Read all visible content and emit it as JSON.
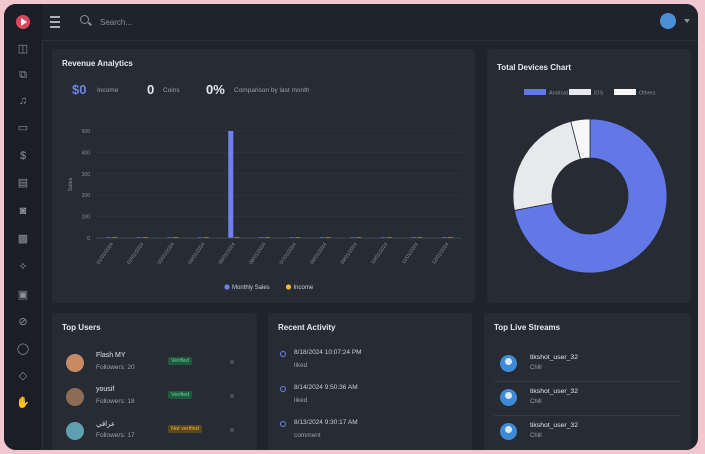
{
  "topbar": {
    "search_placeholder": "Search..."
  },
  "sidebar": {
    "icons": [
      "collections-icon",
      "copy-icon",
      "music-note-icon",
      "monitor-icon",
      "dollar-icon",
      "store-icon",
      "basket-icon",
      "bar-chart-icon",
      "sparkle-icon",
      "folder-icon",
      "ban-icon",
      "chat-icon",
      "tag-icon",
      "hand-icon"
    ]
  },
  "revenue": {
    "title": "Revenue Analytics",
    "stats": [
      {
        "value": "$0",
        "label": "Income",
        "color": "#6f86e6"
      },
      {
        "value": "0",
        "label": "Coins",
        "color": "#e6e9ef"
      },
      {
        "value": "0%",
        "label": "Comparison by last month",
        "color": "#e6e9ef"
      }
    ]
  },
  "chart_data": [
    {
      "type": "bar",
      "title": "",
      "xlabel": "",
      "ylabel": "Sales",
      "ylim": [
        0,
        500
      ],
      "yticks": [
        0,
        100,
        200,
        300,
        400,
        500
      ],
      "categories": [
        "01/01/2024",
        "02/01/2024",
        "03/01/2024",
        "04/01/2024",
        "05/01/2024",
        "06/01/2024",
        "07/01/2024",
        "08/01/2024",
        "09/01/2024",
        "10/01/2024",
        "11/01/2024",
        "12/01/2024"
      ],
      "series": [
        {
          "name": "Monthly Sales",
          "color": "#6f7ff0",
          "values": [
            0,
            0,
            0,
            0,
            500,
            0,
            0,
            0,
            0,
            0,
            0,
            0
          ]
        },
        {
          "name": "Income",
          "color": "#f0b63c",
          "values": [
            0,
            0,
            0,
            0,
            0,
            0,
            0,
            0,
            0,
            0,
            0,
            0
          ]
        }
      ]
    },
    {
      "type": "pie",
      "title": "Total Devices Chart",
      "donut": true,
      "legend_position": "top",
      "slices": [
        {
          "label": "Android",
          "value": 72,
          "color": "#6178e6"
        },
        {
          "label": "iOS",
          "value": 24,
          "color": "#e8e9ec"
        },
        {
          "label": "Others",
          "value": 4,
          "color": "#f7f7f8"
        }
      ]
    }
  ],
  "top_users": {
    "title": "Top Users",
    "users": [
      {
        "name": "Flash MY",
        "followers": "Followers: 20",
        "badge": "Verified",
        "badge_bg": "#1f5a3e",
        "badge_fg": "#5fd49a",
        "avatar": "#c78a62"
      },
      {
        "name": "yousif",
        "followers": "Followers: 18",
        "badge": "Verified",
        "badge_bg": "#1f5a3e",
        "badge_fg": "#5fd49a",
        "avatar": "#8d6c55"
      },
      {
        "name": "عراقي",
        "followers": "Followers: 17",
        "badge": "Not verified",
        "badge_bg": "#5a4620",
        "badge_fg": "#f0b63c",
        "avatar": "#5f9fb0"
      }
    ]
  },
  "recent_activity": {
    "title": "Recent Activity",
    "items": [
      {
        "time": "8/18/2024 10:07:24 PM",
        "text": "liked"
      },
      {
        "time": "8/14/2024 9:50:36 AM",
        "text": "liked"
      },
      {
        "time": "8/13/2024 9:30:17 AM",
        "text": "comment"
      }
    ]
  },
  "live_streams": {
    "title": "Top Live Streams",
    "items": [
      {
        "name": "tikshot_user_32",
        "sub": "Chill"
      },
      {
        "name": "tikshot_user_32",
        "sub": "Chill"
      },
      {
        "name": "tikshot_user_32",
        "sub": "Chill"
      }
    ]
  }
}
